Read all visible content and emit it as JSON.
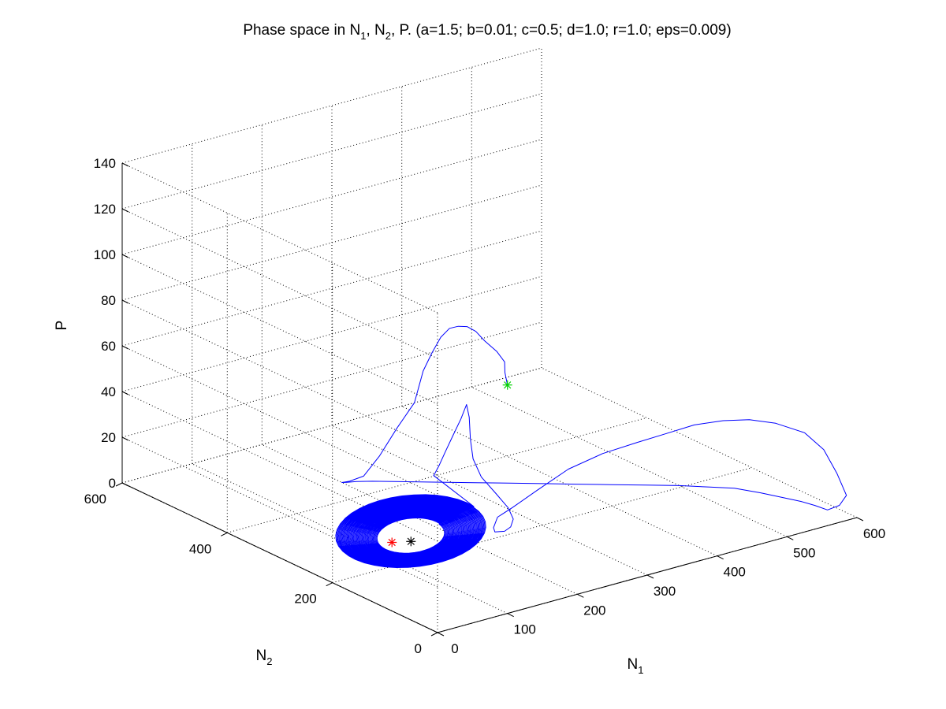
{
  "chart_data": {
    "type": "line3d",
    "title": {
      "before_n1": "Phase space in N",
      "n1_sub": "1",
      "between": ", N",
      "n2_sub": "2",
      "after": ", P. (a=1.5; b=0.01; c=0.5; d=1.0; r=1.0; eps=0.009)"
    },
    "axes": {
      "x": {
        "label": "N",
        "label_sub": "1",
        "lim": [
          0,
          600
        ],
        "ticks": [
          "0",
          "100",
          "200",
          "300",
          "400",
          "500",
          "600"
        ]
      },
      "y": {
        "label": "N",
        "label_sub": "2",
        "lim": [
          0,
          600
        ],
        "ticks": [
          "0",
          "200",
          "400",
          "600"
        ]
      },
      "z": {
        "label": "P",
        "lim": [
          0,
          140
        ],
        "ticks": [
          "0",
          "20",
          "40",
          "60",
          "80",
          "100",
          "120",
          "140"
        ]
      }
    },
    "grid": true,
    "box": "three back walls",
    "colors": {
      "trajectory": "#0000ff",
      "start_marker": "#00d000",
      "end_marker": "#ff0000",
      "equilibrium_marker": "#000000",
      "grid": "#000000"
    },
    "markers": {
      "start": {
        "N1": 100,
        "N2": 0,
        "P": 100
      },
      "end": {
        "N1": 131,
        "N2": 261,
        "P": 0
      },
      "equilibrium": {
        "N1": 150,
        "N2": 250,
        "P": 0
      }
    },
    "trajectory": {
      "N1": [
        100,
        104,
        111,
        115,
        120,
        130,
        140,
        150,
        160,
        170,
        180,
        190,
        200,
        205,
        210,
        210,
        205,
        200,
        205,
        215,
        230,
        260,
        290,
        320,
        350,
        380,
        410,
        440,
        470,
        500,
        525,
        545,
        560,
        572,
        580,
        585,
        588,
        590,
        585,
        575,
        560,
        540,
        510,
        480,
        450,
        420,
        390,
        360,
        330,
        300,
        270,
        250,
        240,
        238,
        240,
        250,
        255,
        255,
        250,
        240,
        228,
        220,
        220,
        222,
        222,
        220,
        214,
        208,
        202,
        196
      ],
      "N2": [
        0,
        10,
        20,
        40,
        70,
        100,
        130,
        160,
        190,
        220,
        250,
        280,
        310,
        350,
        390,
        420,
        440,
        448,
        445,
        440,
        430,
        405,
        380,
        355,
        330,
        305,
        280,
        255,
        230,
        205,
        180,
        160,
        130,
        100,
        80,
        60,
        40,
        20,
        0,
        5,
        10,
        20,
        35,
        45,
        55,
        70,
        85,
        100,
        125,
        150,
        170,
        190,
        205,
        210,
        210,
        205,
        200,
        195,
        198,
        208,
        220,
        225,
        230,
        235,
        240,
        248,
        256,
        262,
        266,
        268
      ],
      "P": [
        100,
        104,
        107,
        109,
        110,
        110,
        108,
        104,
        99,
        91,
        80,
        68,
        50,
        34,
        17,
        5,
        1,
        0,
        0,
        0,
        0,
        0,
        0,
        0,
        0,
        0,
        0,
        0,
        0,
        0,
        0,
        0,
        0,
        0,
        0,
        0,
        0,
        4,
        11,
        21,
        32,
        40,
        45,
        48,
        49,
        48,
        45,
        42,
        37,
        30,
        21,
        13,
        8,
        3,
        1,
        1,
        3,
        7,
        12,
        18,
        25,
        33,
        41,
        50,
        55,
        48,
        40,
        33,
        27,
        23
      ]
    },
    "limit_cycle": {
      "center": {
        "N1": 150,
        "N2": 250,
        "P": 0
      },
      "radius_N1": {
        "inner": 40,
        "outer": 90
      },
      "radius_N2": {
        "inner": 35,
        "outer": 80
      },
      "height_P": {
        "inner": 5,
        "outer": 9
      },
      "turns": 45
    }
  }
}
